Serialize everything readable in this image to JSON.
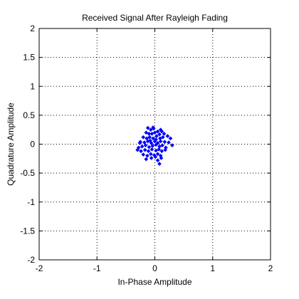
{
  "chart_data": {
    "type": "scatter",
    "title": "Received Signal After Rayleigh Fading",
    "xlabel": "In-Phase Amplitude",
    "ylabel": "Quadrature Amplitude",
    "xlim": [
      -2,
      2
    ],
    "ylim": [
      -2,
      2
    ],
    "xticks": [
      -2,
      -1,
      0,
      1,
      2
    ],
    "yticks": [
      -2,
      -1.5,
      -1,
      -0.5,
      0,
      0.5,
      1,
      1.5,
      2
    ],
    "xtick_labels": [
      "-2",
      "-1",
      "0",
      "1",
      "2"
    ],
    "ytick_labels": [
      "-2",
      "-1.5",
      "-1",
      "-0.5",
      "0",
      "0.5",
      "1",
      "1.5",
      "2"
    ],
    "grid": true,
    "marker_color": "#0000ff",
    "series": [
      {
        "points": [
          [
            -0.12,
            0.28
          ],
          [
            -0.07,
            0.25
          ],
          [
            -0.02,
            0.27
          ],
          [
            0.05,
            0.22
          ],
          [
            0.1,
            0.25
          ],
          [
            0.12,
            0.22
          ],
          [
            -0.15,
            0.2
          ],
          [
            -0.1,
            0.18
          ],
          [
            -0.05,
            0.18
          ],
          [
            0.0,
            0.2
          ],
          [
            0.03,
            0.14
          ],
          [
            0.08,
            0.17
          ],
          [
            -0.2,
            0.12
          ],
          [
            -0.14,
            0.1
          ],
          [
            -0.09,
            0.12
          ],
          [
            -0.03,
            0.1
          ],
          [
            0.02,
            0.08
          ],
          [
            0.09,
            0.1
          ],
          [
            0.14,
            0.12
          ],
          [
            0.22,
            0.14
          ],
          [
            0.27,
            0.1
          ],
          [
            -0.25,
            0.04
          ],
          [
            -0.18,
            0.03
          ],
          [
            -0.12,
            0.05
          ],
          [
            -0.06,
            0.02
          ],
          [
            0.0,
            0.05
          ],
          [
            0.05,
            0.02
          ],
          [
            0.1,
            0.05
          ],
          [
            0.17,
            0.04
          ],
          [
            0.24,
            0.03
          ],
          [
            -0.28,
            -0.06
          ],
          [
            -0.22,
            -0.04
          ],
          [
            -0.16,
            -0.02
          ],
          [
            -0.1,
            -0.05
          ],
          [
            -0.04,
            -0.03
          ],
          [
            0.02,
            -0.01
          ],
          [
            0.08,
            -0.04
          ],
          [
            0.13,
            -0.02
          ],
          [
            0.19,
            -0.06
          ],
          [
            0.3,
            -0.02
          ],
          [
            -0.3,
            -0.1
          ],
          [
            -0.24,
            -0.12
          ],
          [
            -0.17,
            -0.1
          ],
          [
            -0.11,
            -0.12
          ],
          [
            -0.05,
            -0.09
          ],
          [
            0.02,
            -0.11
          ],
          [
            0.07,
            -0.09
          ],
          [
            0.12,
            -0.12
          ],
          [
            0.18,
            -0.1
          ],
          [
            -0.2,
            -0.18
          ],
          [
            -0.13,
            -0.2
          ],
          [
            -0.07,
            -0.17
          ],
          [
            -0.01,
            -0.19
          ],
          [
            0.05,
            -0.17
          ],
          [
            0.1,
            -0.2
          ],
          [
            -0.15,
            -0.26
          ],
          [
            -0.06,
            -0.24
          ],
          [
            0.01,
            -0.22
          ],
          [
            0.05,
            -0.28
          ],
          [
            0.11,
            -0.24
          ],
          [
            0.08,
            -0.34
          ],
          [
            -0.03,
            0.29
          ],
          [
            -0.08,
            0.06
          ],
          [
            0.16,
            0.18
          ],
          [
            -0.26,
            0.02
          ]
        ]
      }
    ]
  }
}
